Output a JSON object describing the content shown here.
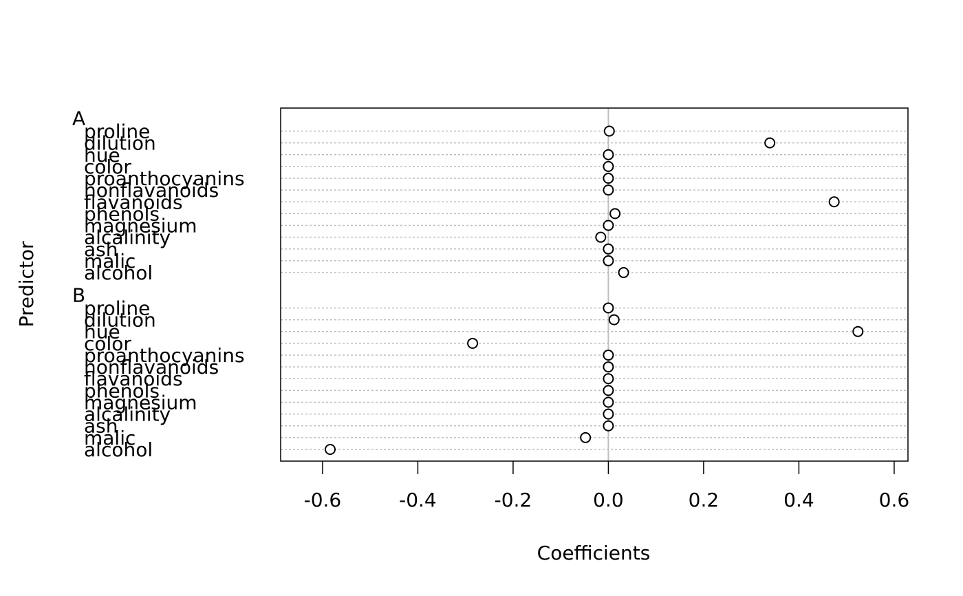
{
  "chart_data": {
    "type": "dot",
    "x_label": "Coefficients",
    "y_label": "Predictor",
    "groups": [
      {
        "name": "A",
        "categories": [
          "proline",
          "dilution",
          "hue",
          "color",
          "proanthocyanins",
          "nonflavanoids",
          "flavanoids",
          "phenols",
          "magnesium",
          "alcalinity",
          "ash",
          "malic",
          "alcohol"
        ],
        "values": [
          0.002,
          0.339,
          0,
          0,
          0,
          0,
          0.474,
          0.014,
          0,
          -0.016,
          0,
          0,
          0.032
        ]
      },
      {
        "name": "B",
        "categories": [
          "proline",
          "dilution",
          "hue",
          "color",
          "proanthocyanins",
          "nonflavanoids",
          "flavanoids",
          "phenols",
          "magnesium",
          "alcalinity",
          "ash",
          "malic",
          "alcohol"
        ],
        "values": [
          0,
          0.012,
          0.524,
          -0.285,
          0,
          0,
          0,
          0,
          0,
          0,
          0,
          -0.048,
          -0.584
        ]
      }
    ],
    "xlim": [
      -0.688,
      0.629
    ],
    "xticks": [
      -0.6,
      -0.4,
      -0.2,
      {
        "value": 0,
        "label": "0.0"
      },
      0.2,
      0.4,
      0.6
    ],
    "grid": true
  }
}
